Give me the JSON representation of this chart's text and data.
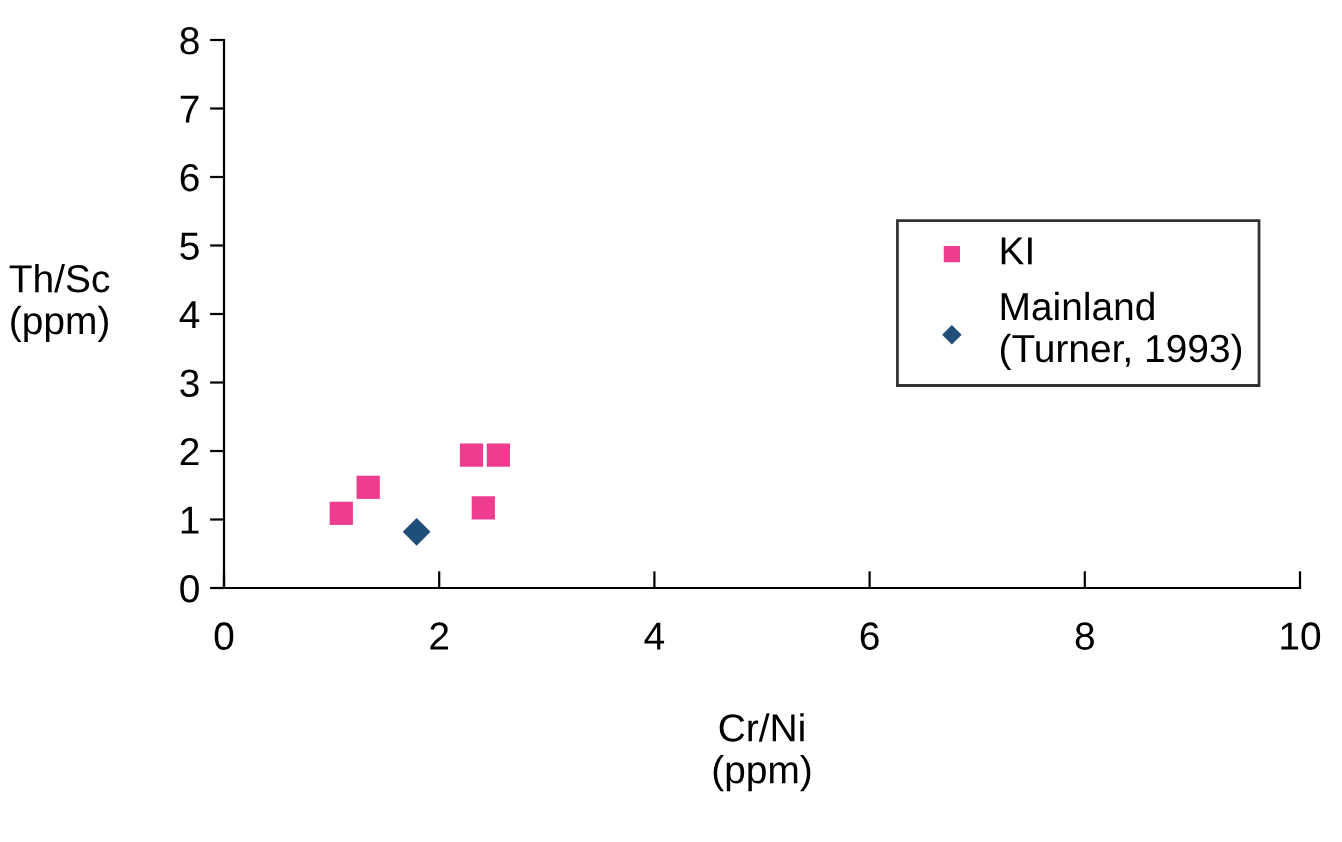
{
  "chart_data": {
    "type": "scatter",
    "xlabel": "Cr/Ni\n(ppm)",
    "ylabel": "Th/Sc\n(ppm)",
    "series": [
      {
        "name": "KI",
        "color": "#ee3d8f",
        "marker": "square",
        "x": [
          1.09,
          1.34,
          2.3,
          2.55,
          2.41
        ],
        "values": [
          1.09,
          1.47,
          1.94,
          1.94,
          1.17
        ]
      },
      {
        "name": "Mainland\n(Turner, 1993)",
        "color": "#1f4e79",
        "marker": "diamond",
        "x": [
          1.79
        ],
        "values": [
          0.82
        ]
      }
    ],
    "xlim": [
      0,
      10
    ],
    "xticks": [
      0,
      2,
      4,
      6,
      8,
      10
    ],
    "ylim": [
      0,
      8
    ],
    "yticks": [
      0,
      1,
      2,
      3,
      4,
      5,
      6,
      7,
      8
    ],
    "grid": false,
    "legend": "right"
  }
}
